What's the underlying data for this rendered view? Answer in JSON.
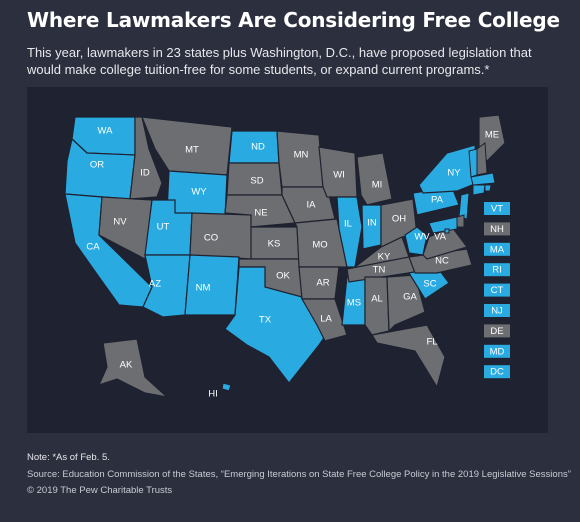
{
  "title": "Where Lawmakers Are Considering Free College",
  "subtitle": "This year, lawmakers in 23 states plus Washington, D.C., have proposed legislation that would make college tuition-free for some students, or expand current programs.*",
  "colors": {
    "considering": "#29abe2",
    "not_considering": "#6d6e71",
    "background": "#2b2f3e",
    "map_panel": "#1f2230"
  },
  "states": [
    {
      "label": "WA",
      "considering": true
    },
    {
      "label": "OR",
      "considering": true
    },
    {
      "label": "CA",
      "considering": true
    },
    {
      "label": "ID",
      "considering": false
    },
    {
      "label": "NV",
      "considering": false
    },
    {
      "label": "MT",
      "considering": false
    },
    {
      "label": "WY",
      "considering": true
    },
    {
      "label": "UT",
      "considering": true
    },
    {
      "label": "AZ",
      "considering": true
    },
    {
      "label": "CO",
      "considering": false
    },
    {
      "label": "NM",
      "considering": true
    },
    {
      "label": "ND",
      "considering": true
    },
    {
      "label": "SD",
      "considering": false
    },
    {
      "label": "NE",
      "considering": false
    },
    {
      "label": "KS",
      "considering": false
    },
    {
      "label": "OK",
      "considering": false
    },
    {
      "label": "TX",
      "considering": true
    },
    {
      "label": "MN",
      "considering": false
    },
    {
      "label": "IA",
      "considering": false
    },
    {
      "label": "MO",
      "considering": false
    },
    {
      "label": "AR",
      "considering": false
    },
    {
      "label": "LA",
      "considering": false
    },
    {
      "label": "WI",
      "considering": false
    },
    {
      "label": "IL",
      "considering": true
    },
    {
      "label": "MS",
      "considering": true
    },
    {
      "label": "MI",
      "considering": false
    },
    {
      "label": "IN",
      "considering": true
    },
    {
      "label": "KY",
      "considering": false
    },
    {
      "label": "TN",
      "considering": false
    },
    {
      "label": "AL",
      "considering": false
    },
    {
      "label": "OH",
      "considering": false
    },
    {
      "label": "WV",
      "considering": true
    },
    {
      "label": "GA",
      "considering": false
    },
    {
      "label": "FL",
      "considering": false
    },
    {
      "label": "SC",
      "considering": true
    },
    {
      "label": "NC",
      "considering": false
    },
    {
      "label": "VA",
      "considering": false
    },
    {
      "label": "PA",
      "considering": true
    },
    {
      "label": "NY",
      "considering": true
    },
    {
      "label": "ME",
      "considering": false
    },
    {
      "label": "AK",
      "considering": false
    },
    {
      "label": "HI",
      "considering": true
    }
  ],
  "small_states": [
    {
      "label": "VT",
      "considering": true
    },
    {
      "label": "NH",
      "considering": false
    },
    {
      "label": "MA",
      "considering": true
    },
    {
      "label": "RI",
      "considering": true
    },
    {
      "label": "CT",
      "considering": true
    },
    {
      "label": "NJ",
      "considering": true
    },
    {
      "label": "DE",
      "considering": false
    },
    {
      "label": "MD",
      "considering": true
    },
    {
      "label": "DC",
      "considering": true
    }
  ],
  "footer": {
    "note": "Note: *As of Feb. 5.",
    "source": "Source: Education Commission of the States, “Emerging Iterations on State Free College Policy in the 2019 Legislative Sessions”",
    "copyright": "© 2019 The Pew Charitable Trusts"
  }
}
